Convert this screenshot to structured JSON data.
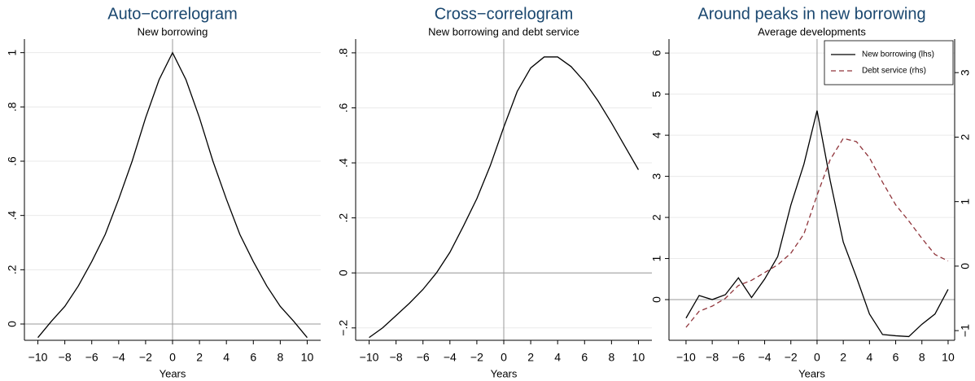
{
  "chart_data": [
    {
      "type": "line",
      "title": "Auto−correlogram",
      "subtitle": "New borrowing",
      "x_label": "Years",
      "x": [
        -10,
        -9,
        -8,
        -7,
        -6,
        -5,
        -4,
        -3,
        -2,
        -1,
        0,
        1,
        2,
        3,
        4,
        5,
        6,
        7,
        8,
        9,
        10
      ],
      "series": [
        {
          "color": "#000000",
          "values": [
            -0.05,
            0.01,
            0.065,
            0.14,
            0.23,
            0.33,
            0.46,
            0.6,
            0.76,
            0.9,
            1,
            0.9,
            0.76,
            0.6,
            0.46,
            0.33,
            0.23,
            0.14,
            0.065,
            0.01,
            -0.05
          ]
        }
      ],
      "xlim": [
        -11,
        11
      ],
      "xticks": [
        {
          "value": -10,
          "label": "−10"
        },
        {
          "value": -8,
          "label": "−8"
        },
        {
          "value": -6,
          "label": "−6"
        },
        {
          "value": -4,
          "label": "−4"
        },
        {
          "value": -2,
          "label": "−2"
        },
        0,
        2,
        4,
        6,
        8,
        10
      ],
      "ylim": [
        -0.06,
        1.05
      ],
      "yticks": [
        0,
        {
          "value": 0.2,
          "label": ".2"
        },
        {
          "value": 0.4,
          "label": ".4"
        },
        {
          "value": 0.6,
          "label": ".6"
        },
        {
          "value": 0.8,
          "label": ".8"
        },
        1
      ],
      "grid": true,
      "reference_lines": {
        "x": 0,
        "y": 0
      }
    },
    {
      "type": "line",
      "title": "Cross−correlogram",
      "subtitle": "New borrowing and debt service",
      "x_label": "Years",
      "x": [
        -10,
        -9,
        -8,
        -7,
        -6,
        -5,
        -4,
        -3,
        -2,
        -1,
        0,
        1,
        2,
        3,
        4,
        5,
        6,
        7,
        8,
        9,
        10
      ],
      "series": [
        {
          "color": "#000000",
          "values": [
            -0.235,
            -0.2,
            -0.155,
            -0.11,
            -0.06,
            0,
            0.075,
            0.17,
            0.27,
            0.39,
            0.53,
            0.66,
            0.745,
            0.785,
            0.785,
            0.75,
            0.695,
            0.625,
            0.545,
            0.46,
            0.375
          ]
        }
      ],
      "xlim": [
        -11,
        11
      ],
      "xticks": [
        {
          "value": -10,
          "label": "−10"
        },
        {
          "value": -8,
          "label": "−8"
        },
        {
          "value": -6,
          "label": "−6"
        },
        {
          "value": -4,
          "label": "−4"
        },
        {
          "value": -2,
          "label": "−2"
        },
        0,
        2,
        4,
        6,
        8,
        10
      ],
      "ylim": [
        -0.245,
        0.85
      ],
      "yticks": [
        {
          "value": -0.2,
          "label": "−.2"
        },
        0,
        {
          "value": 0.2,
          "label": ".2"
        },
        {
          "value": 0.4,
          "label": ".4"
        },
        {
          "value": 0.6,
          "label": ".6"
        },
        {
          "value": 0.8,
          "label": ".8"
        }
      ],
      "grid": true,
      "reference_lines": {
        "x": 0,
        "y": 0
      }
    },
    {
      "type": "line",
      "title": "Around peaks in new borrowing",
      "subtitle": "Average developments",
      "x_label": "Years",
      "x": [
        -10,
        -9,
        -8,
        -7,
        -6,
        -5,
        -4,
        -3,
        -2,
        -1,
        0,
        1,
        2,
        3,
        4,
        5,
        6,
        7,
        8,
        9,
        10
      ],
      "series": [
        {
          "name": "New borrowing (lhs)",
          "color": "#000000",
          "values": [
            -0.45,
            0.1,
            0.0,
            0.12,
            0.53,
            0.05,
            0.5,
            1.05,
            2.3,
            3.3,
            4.6,
            2.9,
            1.4,
            0.55,
            -0.35,
            -0.85,
            -0.88,
            -0.9,
            -0.6,
            -0.35,
            0.25
          ]
        },
        {
          "name": "Debt service (rhs)",
          "color": "#90353b",
          "line_style": "dashed",
          "axis": "y2",
          "values": [
            -0.95,
            -0.7,
            -0.62,
            -0.5,
            -0.3,
            -0.22,
            -0.1,
            0.02,
            0.2,
            0.5,
            1.1,
            1.65,
            1.98,
            1.93,
            1.68,
            1.3,
            0.95,
            0.7,
            0.43,
            0.18,
            0.08
          ]
        }
      ],
      "xlim": [
        -11.3,
        10.5
      ],
      "xticks": [
        {
          "value": -10,
          "label": "−10"
        },
        {
          "value": -8,
          "label": "−8"
        },
        {
          "value": -6,
          "label": "−6"
        },
        {
          "value": -4,
          "label": "−4"
        },
        {
          "value": -2,
          "label": "−2"
        },
        0,
        2,
        4,
        6,
        8,
        10
      ],
      "ylim": [
        -0.99,
        6.34
      ],
      "yticks": [
        0,
        1,
        2,
        3,
        4,
        5,
        6
      ],
      "y2lim": [
        -1.15,
        3.52
      ],
      "y2ticks": [
        {
          "value": -1,
          "label": "−1"
        },
        0,
        1,
        2,
        3
      ],
      "grid": true,
      "reference_lines": {
        "x": 0,
        "y": 0
      },
      "legend": "top-right"
    }
  ]
}
